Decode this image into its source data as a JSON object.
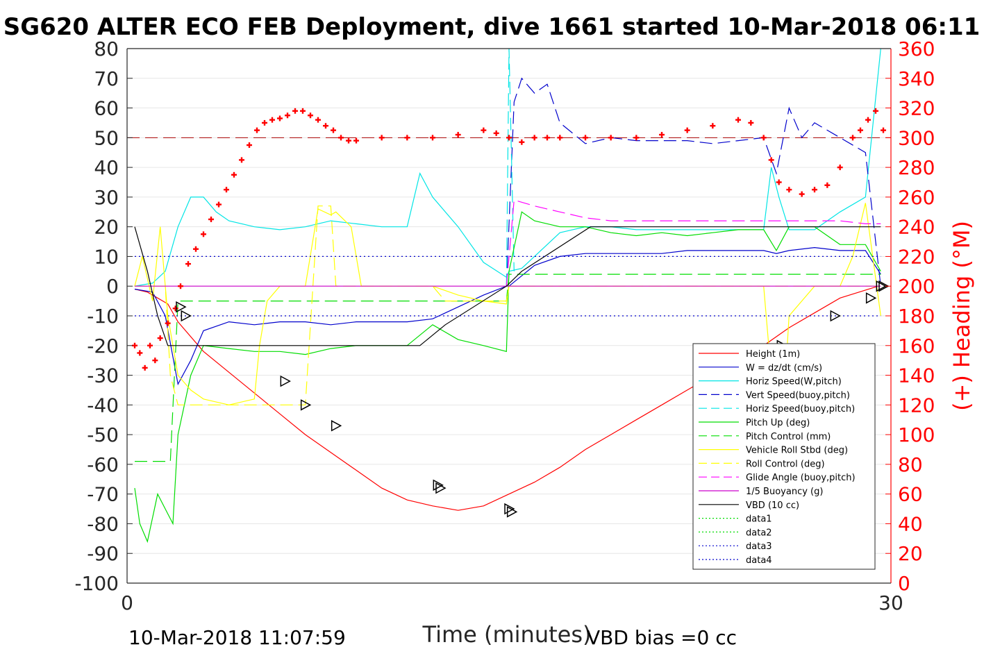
{
  "chart_data": {
    "type": "line",
    "title": "SG620 ALTER ECO FEB Deployment, dive 1661 started 10-Mar-2018 06:11",
    "xlabel": "Time (minutes)",
    "ylabel": "",
    "y2label": "(+) Heading (°M)",
    "xlim": [
      0,
      30
    ],
    "ylim": [
      -100,
      80
    ],
    "y2lim": [
      0,
      360
    ],
    "xticks": [
      "0",
      "30"
    ],
    "yticks": [
      "80",
      "70",
      "60",
      "50",
      "40",
      "30",
      "20",
      "10",
      "0",
      "-10",
      "-20",
      "-30",
      "-40",
      "-50",
      "-60",
      "-70",
      "-80",
      "-90",
      "-100"
    ],
    "y2ticks": [
      "360",
      "340",
      "320",
      "300",
      "280",
      "260",
      "240",
      "220",
      "200",
      "180",
      "160",
      "140",
      "120",
      "100",
      "80",
      "60",
      "40",
      "20",
      "0"
    ],
    "grid": true,
    "legend_position": "bottom-right",
    "footer_left": "10-Mar-2018 11:07:59",
    "footer_right": "VBD bias =0 cc",
    "series": [
      {
        "name": "Height (1m)",
        "color": "#ff0000",
        "style": "solid",
        "x": [
          0.3,
          0.8,
          1.2,
          1.6,
          2.0,
          3.0,
          4.0,
          5.0,
          6.0,
          7.0,
          8.0,
          9.0,
          10.0,
          11.0,
          12.0,
          13.0,
          14.0,
          15.0,
          16.0,
          17.0,
          18.0,
          19.0,
          20.0,
          21.0,
          22.0,
          23.0,
          24.0,
          25.0,
          26.0,
          27.0,
          28.0,
          29.5
        ],
        "values": [
          -1,
          -2,
          -4,
          -6,
          -12,
          -22,
          -29,
          -36,
          -43,
          -50,
          -56,
          -62,
          -68,
          -72,
          -74,
          -75.5,
          -74,
          -70,
          -66,
          -61,
          -55,
          -50,
          -45,
          -40,
          -35,
          -30,
          -24,
          -20,
          -14,
          -9,
          -4,
          0
        ]
      },
      {
        "name": "W = dz/dt (cm/s)",
        "color": "#0000cc",
        "style": "solid",
        "x": [
          0.3,
          1,
          1.5,
          2,
          2.5,
          3,
          4,
          5,
          6,
          7,
          8,
          9,
          10,
          11,
          12,
          13,
          14,
          14.9,
          15,
          16,
          17,
          18,
          19,
          20,
          21,
          22,
          23,
          24,
          25,
          25.5,
          26,
          27,
          28,
          29,
          29.6
        ],
        "values": [
          -1,
          -2,
          -10,
          -33,
          -25,
          -15,
          -12,
          -13,
          -12,
          -12,
          -13,
          -12,
          -12,
          -12,
          -11,
          -7,
          -3,
          0,
          0,
          7,
          10,
          11,
          11,
          11,
          11,
          12,
          12,
          12,
          12,
          11,
          12,
          13,
          12,
          12,
          4
        ]
      },
      {
        "name": "Horiz Speed(W,pitch)",
        "color": "#00e5e5",
        "style": "solid",
        "x": [
          0.3,
          1,
          1.5,
          2,
          2.5,
          3,
          3.5,
          4,
          5,
          6,
          7,
          8,
          9,
          10,
          11,
          11.5,
          12,
          13,
          14,
          14.9,
          15,
          15.5,
          16,
          17,
          18,
          19,
          20,
          21,
          22,
          23,
          24,
          25,
          25.3,
          25.6,
          26,
          27,
          28,
          29,
          29.6
        ],
        "values": [
          0,
          1,
          5,
          20,
          30,
          30,
          25,
          22,
          20,
          19,
          20,
          22,
          21,
          20,
          20,
          38,
          30,
          20,
          8,
          3,
          5,
          6,
          10,
          18,
          20,
          20,
          19,
          19,
          19,
          19,
          19,
          19,
          40,
          30,
          19,
          19,
          25,
          30,
          80
        ]
      },
      {
        "name": "Vert Speed(buoy,pitch)",
        "color": "#0000cc",
        "style": "dashed",
        "x": [
          14.9,
          15.2,
          15.5,
          16,
          16.5,
          17,
          18,
          19,
          20,
          21,
          22,
          23,
          24,
          25,
          25.5,
          26,
          26.5,
          27,
          28,
          29,
          29.6
        ],
        "values": [
          0,
          62,
          70,
          65,
          68,
          55,
          48,
          50,
          49,
          49,
          49,
          48,
          49,
          50,
          38,
          60,
          50,
          55,
          50,
          45,
          0
        ]
      },
      {
        "name": "Horiz Speed(buoy,pitch)",
        "color": "#00e5e5",
        "style": "dashed",
        "x": [
          14.9,
          15.0,
          15.2
        ],
        "values": [
          0,
          80,
          5
        ]
      },
      {
        "name": "Pitch Up (deg)",
        "color": "#00dd00",
        "style": "solid",
        "x": [
          0.3,
          0.5,
          0.8,
          1.2,
          1.5,
          1.8,
          2.0,
          2.5,
          3,
          4,
          5,
          6,
          7,
          8,
          9,
          10,
          11,
          12,
          13,
          14,
          14.9,
          15,
          15.5,
          16,
          17,
          18,
          19,
          20,
          21,
          22,
          23,
          24,
          25,
          25.5,
          26,
          27,
          28,
          29,
          29.6
        ],
        "values": [
          -68,
          -80,
          -86,
          -70,
          -75,
          -80,
          -50,
          -30,
          -20,
          -21,
          -22,
          -22,
          -23,
          -21,
          -20,
          -20,
          -20,
          -13,
          -18,
          -20,
          -22,
          5,
          25,
          22,
          20,
          20,
          18,
          17,
          18,
          17,
          18,
          19,
          19,
          12,
          20,
          20,
          14,
          14,
          5
        ]
      },
      {
        "name": "Pitch Control (mm)",
        "color": "#00dd00",
        "style": "dashed",
        "x": [
          0.3,
          1.5,
          1.7,
          2.0,
          14.9,
          15.0,
          29.6
        ],
        "values": [
          -59,
          -59,
          -59,
          -5,
          -5,
          4,
          4
        ]
      },
      {
        "name": "Vehicle Roll Stbd (deg)",
        "color": "#ffff00",
        "style": "solid",
        "x": [
          0.3,
          0.6,
          1.0,
          1.3,
          1.6,
          2.0,
          2.5,
          3,
          4,
          5,
          5.2,
          5.5,
          6,
          7,
          7.5,
          8,
          8.2,
          8.8,
          9.2,
          10,
          11,
          12,
          13,
          14,
          14.9,
          15,
          16,
          17,
          18,
          19,
          20,
          21,
          22,
          23,
          24,
          25,
          25.4,
          25.8,
          26,
          27,
          28,
          28.5,
          29,
          29.6
        ],
        "values": [
          0,
          10,
          -5,
          20,
          -10,
          -30,
          -35,
          -38,
          -40,
          -38,
          -20,
          -5,
          0,
          0,
          26,
          24,
          25,
          20,
          0,
          0,
          0,
          0,
          -3,
          -5,
          -6,
          0,
          0,
          0,
          0,
          0,
          0,
          0,
          0,
          0,
          0,
          0,
          -40,
          -38,
          -10,
          0,
          0,
          10,
          28,
          -10
        ]
      },
      {
        "name": "Roll Control (deg)",
        "color": "#ffff00",
        "style": "dashed",
        "x": [
          0.3,
          1.5,
          1.7,
          2.0,
          7.0,
          7.5,
          8.0,
          8.2,
          12.0,
          12.5,
          13.5,
          14.9,
          15.0,
          29.6
        ],
        "values": [
          0,
          0,
          -30,
          -40,
          -40,
          27,
          27,
          0,
          0,
          -5,
          -5,
          -5,
          0,
          0
        ]
      },
      {
        "name": "Glide Angle (buoy,pitch)",
        "color": "#ff00ff",
        "style": "dashed",
        "x": [
          14.9,
          15.2,
          16,
          17,
          18,
          19,
          20,
          21,
          22,
          23,
          24,
          25,
          26,
          27,
          28,
          29,
          29.6
        ],
        "values": [
          0,
          29,
          27,
          25,
          23,
          22,
          22,
          22,
          22,
          22,
          22,
          22,
          22,
          22,
          22,
          21,
          21
        ]
      },
      {
        "name": "1/5 Buoyancy (g)",
        "color": "#cc00cc",
        "style": "solid",
        "x": [
          0.3,
          29.6
        ],
        "values": [
          0,
          0
        ]
      },
      {
        "name": "VBD (10 cc)",
        "color": "#000000",
        "style": "solid",
        "x": [
          0.3,
          0.8,
          1.2,
          1.6,
          11.5,
          12.5,
          14.9,
          15.5,
          18.2,
          29.6
        ],
        "values": [
          20,
          5,
          -10,
          -20,
          -20,
          -13,
          0,
          5,
          20,
          20
        ]
      },
      {
        "name": "data1",
        "color": "#00dd00",
        "style": "dotted",
        "x": [],
        "values": []
      },
      {
        "name": "data2",
        "color": "#00dd00",
        "style": "dotted",
        "x": [],
        "values": []
      },
      {
        "name": "data3",
        "color": "#0000cc",
        "style": "dotted",
        "x": [
          0.3,
          29.6
        ],
        "values": [
          10,
          10
        ]
      },
      {
        "name": "data4",
        "color": "#0000cc",
        "style": "dotted",
        "x": [
          0.3,
          29.6
        ],
        "values": [
          -10,
          -10
        ]
      }
    ],
    "heading_target": 300,
    "heading_series": {
      "color": "#ff0000",
      "x": [
        0.3,
        0.5,
        0.7,
        0.9,
        1.1,
        1.3,
        1.6,
        1.9,
        2.1,
        2.4,
        2.7,
        3.0,
        3.3,
        3.6,
        3.9,
        4.2,
        4.5,
        4.8,
        5.1,
        5.4,
        5.7,
        6.0,
        6.3,
        6.6,
        6.9,
        7.2,
        7.5,
        7.8,
        8.1,
        8.4,
        8.7,
        9,
        10,
        11,
        12,
        13,
        14,
        14.5,
        15,
        15.5,
        16,
        16.5,
        17,
        18,
        19,
        20,
        21,
        22,
        23,
        24,
        24.5,
        25,
        25.3,
        25.6,
        26,
        26.5,
        27,
        27.5,
        28,
        28.5,
        28.8,
        29.1,
        29.4,
        29.7
      ],
      "values": [
        160,
        155,
        145,
        160,
        150,
        165,
        175,
        185,
        200,
        215,
        225,
        235,
        245,
        255,
        265,
        275,
        285,
        295,
        305,
        310,
        312,
        313,
        315,
        318,
        318,
        315,
        312,
        308,
        305,
        300,
        298,
        298,
        300,
        300,
        300,
        302,
        305,
        303,
        300,
        297,
        300,
        300,
        300,
        300,
        300,
        300,
        302,
        305,
        308,
        312,
        310,
        300,
        285,
        270,
        265,
        262,
        265,
        268,
        280,
        300,
        305,
        312,
        318,
        305
      ]
    },
    "markers": {
      "x": [
        2.1,
        2.3,
        6.2,
        7.0,
        8.2,
        12.2,
        12.3,
        15.0,
        15.1,
        24.8,
        25.7,
        27.8,
        29.2,
        29.6,
        29.7
      ],
      "values": [
        -7,
        -10,
        -32,
        -40,
        -47,
        -67,
        -68,
        -75,
        -76,
        -24,
        -20,
        -10,
        -4,
        0,
        0
      ]
    }
  }
}
